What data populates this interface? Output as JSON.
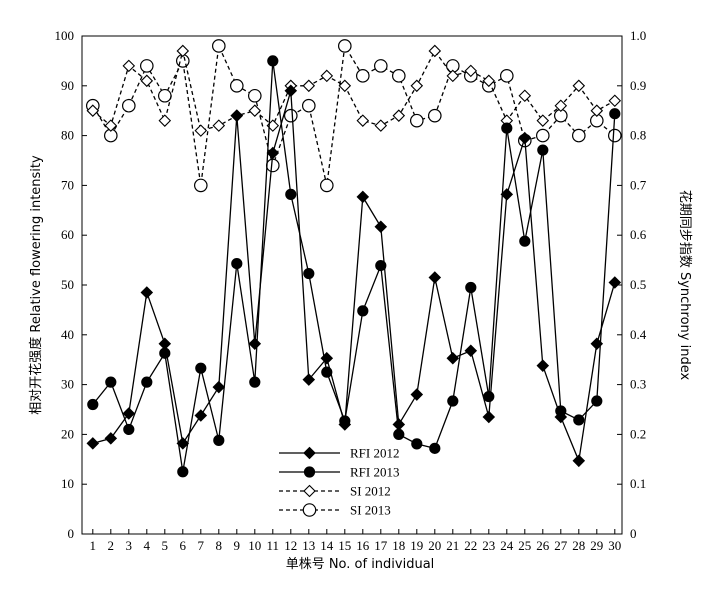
{
  "chart_data": {
    "type": "line",
    "title": "",
    "xlabel": "单株号 No. of individual",
    "ylabel": "相对开花强度 Relative flowering intensity",
    "y2label": "花期同步指数 Synchrony index",
    "categories": [
      "1",
      "2",
      "3",
      "4",
      "5",
      "6",
      "7",
      "8",
      "9",
      "10",
      "11",
      "12",
      "13",
      "14",
      "15",
      "16",
      "17",
      "18",
      "19",
      "20",
      "21",
      "22",
      "23",
      "24",
      "25",
      "26",
      "27",
      "28",
      "29",
      "30"
    ],
    "xlim": [
      0.4,
      30.4
    ],
    "ylim": [
      0,
      100
    ],
    "yticks": [
      "0",
      "10",
      "20",
      "30",
      "40",
      "50",
      "60",
      "70",
      "80",
      "90",
      "100"
    ],
    "y2lim": [
      0,
      1.0
    ],
    "y2ticks": [
      "0",
      "0.1",
      "0.2",
      "0.3",
      "0.4",
      "0.5",
      "0.6",
      "0.7",
      "0.8",
      "0.9",
      "1.0"
    ],
    "grid": false,
    "legend_position": "bottom-center",
    "series": [
      {
        "name": "RFI 2012",
        "axis": "left",
        "style": "solid",
        "marker": "diamond-filled",
        "values": [
          18.2,
          19.2,
          24.2,
          48.5,
          38.2,
          18.2,
          23.8,
          29.5,
          84.0,
          38.2,
          76.5,
          89.0,
          31.0,
          35.3,
          22.0,
          67.7,
          61.7,
          22.0,
          28.0,
          51.5,
          35.3,
          36.8,
          23.5,
          68.2,
          79.5,
          33.8,
          23.5,
          14.7,
          38.2,
          50.5
        ]
      },
      {
        "name": "RFI 2013",
        "axis": "left",
        "style": "solid",
        "marker": "circle-filled",
        "values": [
          26.0,
          30.5,
          21.0,
          30.5,
          36.3,
          12.5,
          33.3,
          18.8,
          54.3,
          30.5,
          95.0,
          68.2,
          52.3,
          32.5,
          22.7,
          44.8,
          53.9,
          20.0,
          18.1,
          17.2,
          26.7,
          49.5,
          27.6,
          81.5,
          58.8,
          77.1,
          24.7,
          22.9,
          26.7,
          84.4
        ]
      },
      {
        "name": "SI 2012",
        "axis": "right",
        "style": "dashed",
        "marker": "diamond-open",
        "values": [
          0.85,
          0.82,
          0.94,
          0.91,
          0.83,
          0.97,
          0.81,
          0.82,
          0.84,
          0.85,
          0.82,
          0.9,
          0.9,
          0.92,
          0.9,
          0.83,
          0.82,
          0.84,
          0.9,
          0.97,
          0.92,
          0.93,
          0.91,
          0.83,
          0.88,
          0.83,
          0.86,
          0.9,
          0.85,
          0.87
        ]
      },
      {
        "name": "SI 2013",
        "axis": "right",
        "style": "dashed",
        "marker": "circle-open",
        "values": [
          0.86,
          0.8,
          0.86,
          0.94,
          0.88,
          0.95,
          0.7,
          0.98,
          0.9,
          0.88,
          0.74,
          0.84,
          0.86,
          0.7,
          0.98,
          0.92,
          0.94,
          0.92,
          0.83,
          0.84,
          0.94,
          0.92,
          0.9,
          0.92,
          0.79,
          0.8,
          0.84,
          0.8,
          0.83,
          0.8
        ]
      }
    ]
  }
}
